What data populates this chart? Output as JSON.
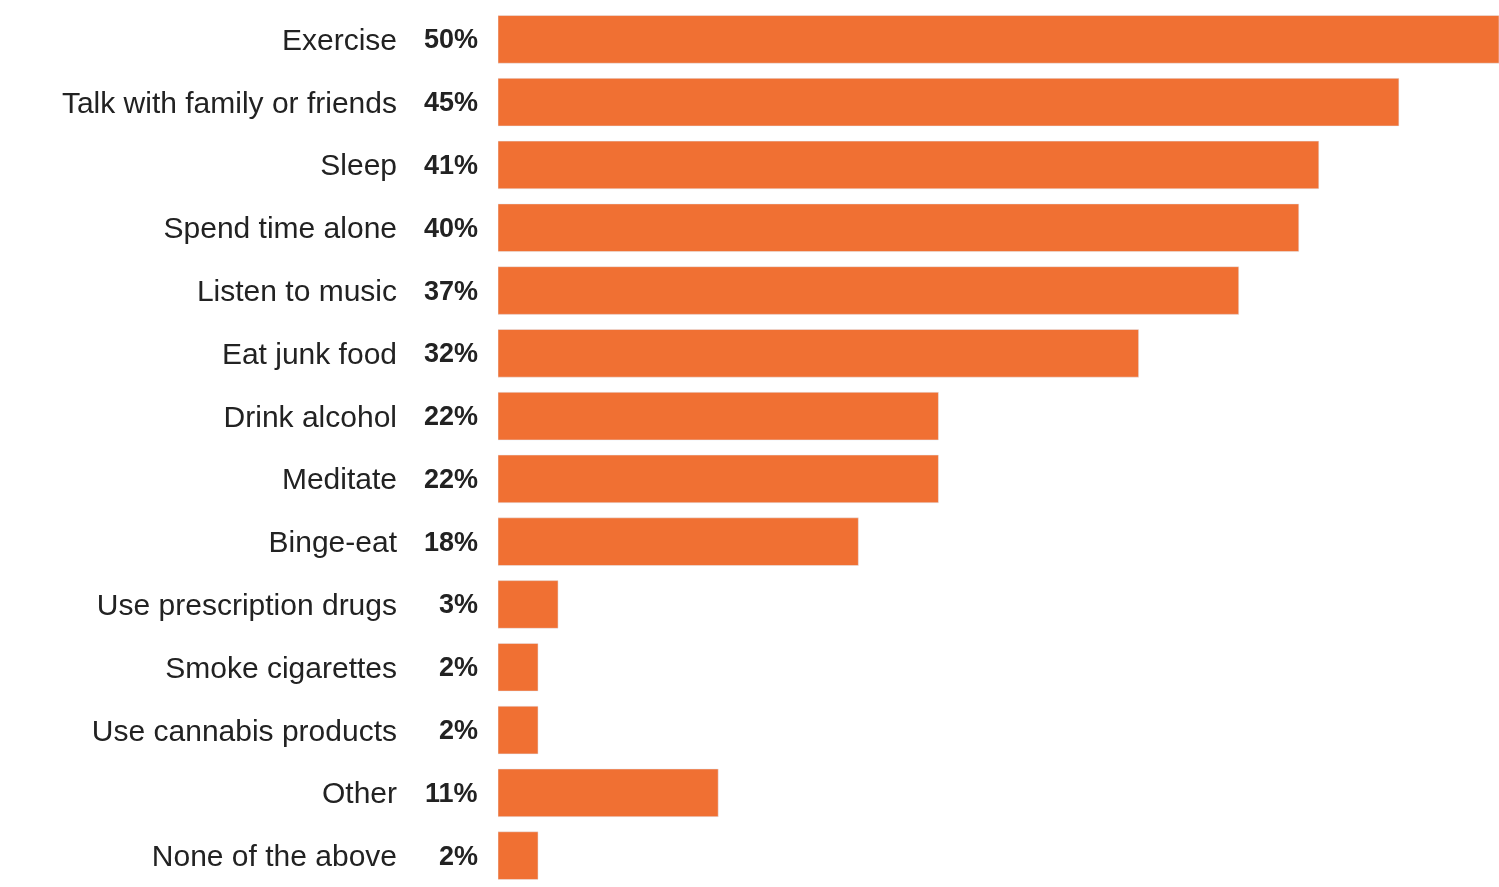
{
  "chart_data": {
    "type": "bar",
    "orientation": "horizontal",
    "categories": [
      "Exercise",
      "Talk with family or friends",
      "Sleep",
      "Spend time alone",
      "Listen to music",
      "Eat junk food",
      "Drink alcohol",
      "Meditate",
      "Binge-eat",
      "Use prescription drugs",
      "Smoke cigarettes",
      "Use cannabis products",
      "Other",
      "None of the above"
    ],
    "values": [
      50,
      45,
      41,
      40,
      37,
      32,
      22,
      22,
      18,
      3,
      2,
      2,
      11,
      2
    ],
    "value_labels": [
      "50%",
      "45%",
      "41%",
      "40%",
      "37%",
      "32%",
      "22%",
      "22%",
      "18%",
      "3%",
      "2%",
      "2%",
      "11%",
      "2%"
    ],
    "color": "#f07033",
    "xlim": [
      0,
      50
    ],
    "tick_labels": "y",
    "legend": false
  }
}
